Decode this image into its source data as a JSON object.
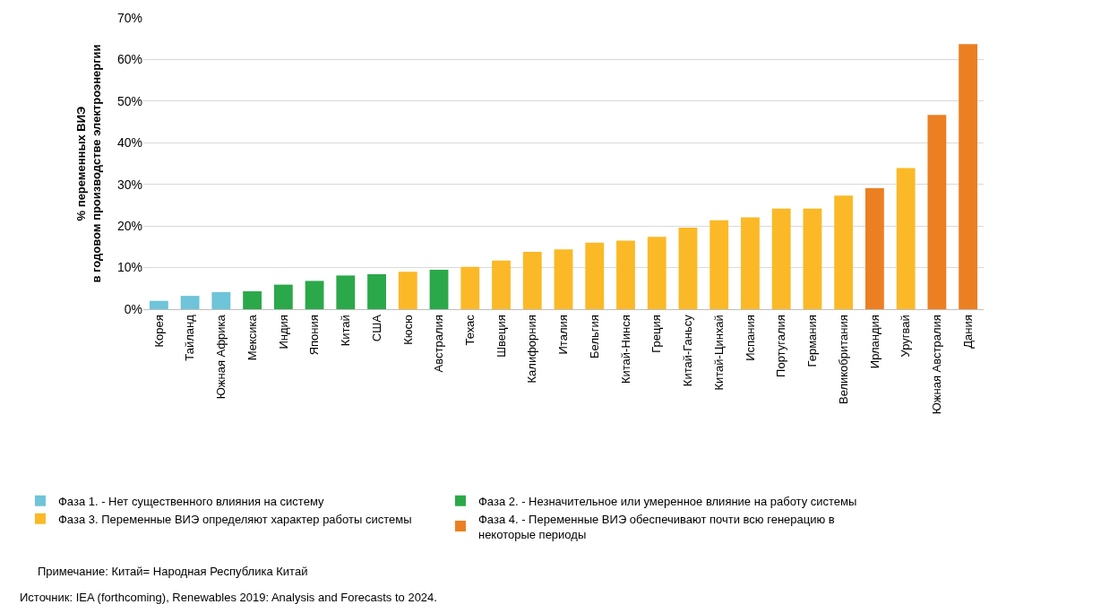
{
  "chart_data": {
    "type": "bar",
    "ylabel": "% переменных ВИЭ\nв годовом производстве электроэнергии",
    "categories": [
      "Корея",
      "Тайланд",
      "Южная Африка",
      "Мексика",
      "Индия",
      "Япония",
      "Китай",
      "США",
      "Кюсю",
      "Австралия",
      "Техас",
      "Швеция",
      "Калифорния",
      "Италия",
      "Бельгия",
      "Китай-Нинся",
      "Греция",
      "Китай-Ганьсу",
      "Китай-Цинхай",
      "Испания",
      "Португалия",
      "Германия",
      "Великобритания",
      "Ирландия",
      "Уругвай",
      "Южная Австралия",
      "Дания"
    ],
    "series": [
      {
        "name": "Фаза 1. - Нет существенного влияния на систему",
        "color": "#6ec4d8",
        "values": [
          2.0,
          3.2,
          4.1,
          null,
          null,
          null,
          null,
          null,
          null,
          null,
          null,
          null,
          null,
          null,
          null,
          null,
          null,
          null,
          null,
          null,
          null,
          null,
          null,
          null,
          null,
          null,
          null
        ]
      },
      {
        "name": "Фаза 2. - Незначительное или умеренное влияние на работу системы",
        "color": "#2ba84a",
        "values": [
          null,
          null,
          null,
          4.3,
          5.9,
          6.8,
          8.1,
          8.4,
          null,
          9.5,
          null,
          null,
          null,
          null,
          null,
          null,
          null,
          null,
          null,
          null,
          null,
          null,
          null,
          null,
          null,
          null,
          null
        ]
      },
      {
        "name": "Фаза 3. Переменные ВИЭ определяют характер работы системы",
        "color": "#fbb927",
        "values": [
          null,
          null,
          null,
          null,
          null,
          null,
          null,
          null,
          9.0,
          null,
          10.2,
          11.7,
          13.8,
          14.4,
          16.0,
          16.5,
          17.4,
          19.6,
          21.4,
          22.1,
          24.2,
          24.2,
          27.3,
          null,
          33.9,
          null,
          null
        ]
      },
      {
        "name": "Фаза 4. - Переменные ВИЭ обеспечивают почти всю генерацию в некоторые периоды",
        "color": "#ec7f22",
        "values": [
          null,
          null,
          null,
          null,
          null,
          null,
          null,
          null,
          null,
          null,
          null,
          null,
          null,
          null,
          null,
          null,
          null,
          null,
          null,
          null,
          null,
          null,
          null,
          29.1,
          null,
          46.7,
          63.7
        ]
      }
    ],
    "ylim": [
      0,
      70
    ],
    "yticks": [
      {
        "value": 0,
        "label": "0%"
      },
      {
        "value": 10,
        "label": "10%"
      },
      {
        "value": 20,
        "label": "20%"
      },
      {
        "value": 30,
        "label": "30%"
      },
      {
        "value": 40,
        "label": "40%"
      },
      {
        "value": 50,
        "label": "50%"
      },
      {
        "value": 60,
        "label": "60%"
      },
      {
        "value": 70,
        "label": "70%"
      }
    ],
    "grid": "y",
    "legend": "bottom",
    "annotations": [
      "Примечание: Китай= Народная Республика Китай",
      "Источник: IEA (forthcoming), Renewables 2019: Analysis and Forecasts to 2024."
    ]
  }
}
